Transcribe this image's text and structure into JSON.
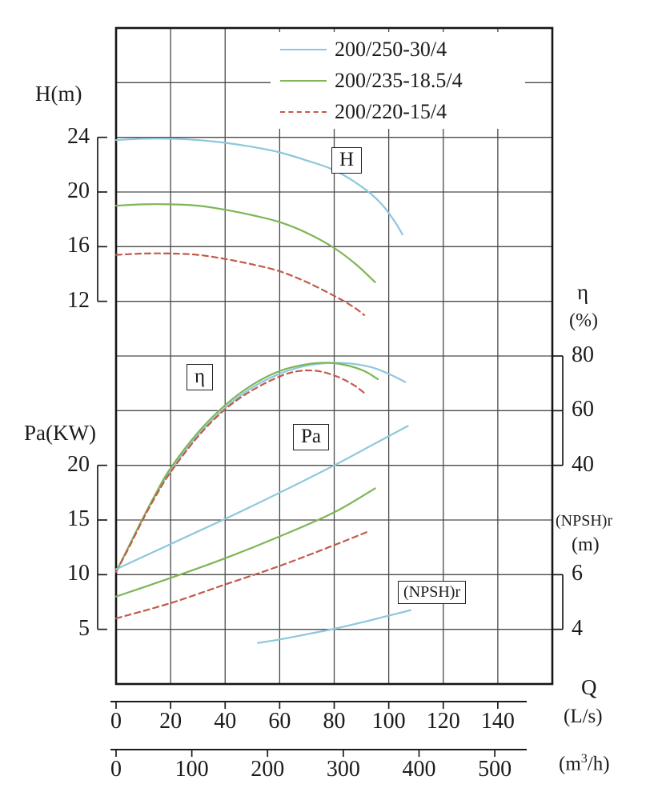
{
  "chart_data": {
    "type": "line",
    "title": "",
    "grid": true,
    "colors": {
      "grid": "#4a4a4a",
      "border": "#161616",
      "text": "#1b1b1b",
      "background": "#ffffff",
      "blue": "#8cc7dd",
      "green": "#7eb654",
      "red": "#c25a4b"
    },
    "x_axes": {
      "primary": {
        "name": "Q",
        "unit": "(L/s)",
        "min": 0,
        "max": 160,
        "ticks": [
          0,
          20,
          40,
          60,
          80,
          100,
          120,
          140
        ]
      },
      "secondary": {
        "unit_prefix": "(m",
        "unit_sup": "3",
        "unit_suffix": "/h)",
        "ticks": [
          0,
          100,
          200,
          300,
          400,
          500
        ]
      }
    },
    "y_axes": {
      "h": {
        "title": "H(m)",
        "side": "left",
        "ticks": [
          24,
          20,
          16,
          12
        ]
      },
      "pa": {
        "title": "Pa(KW)",
        "side": "left",
        "ticks": [
          20,
          15,
          10,
          5
        ]
      },
      "eta": {
        "title": "η",
        "unit": "(%)",
        "side": "right",
        "ticks": [
          80,
          60,
          40
        ]
      },
      "npshr": {
        "title": "(NPSH)r",
        "unit": "(m)",
        "side": "right",
        "ticks": [
          6,
          4
        ]
      }
    },
    "legend": [
      {
        "label": "200/250-30/4",
        "color": "#8cc7dd",
        "dash": false
      },
      {
        "label": "200/235-18.5/4",
        "color": "#7eb654",
        "dash": false
      },
      {
        "label": "200/220-15/4",
        "color": "#c25a4b",
        "dash": true
      }
    ],
    "curve_labels": {
      "h": "H",
      "eta": "η",
      "pa": "Pa",
      "npshr": "(NPSH)r"
    },
    "series": [
      {
        "id": "h-200-250-30-4",
        "group": "H",
        "model": "200/250-30/4",
        "axis": "h",
        "color": "#8cc7dd",
        "dash": false,
        "points": [
          [
            0,
            23.8
          ],
          [
            10,
            23.9
          ],
          [
            20,
            23.9
          ],
          [
            30,
            23.8
          ],
          [
            40,
            23.6
          ],
          [
            50,
            23.3
          ],
          [
            60,
            22.9
          ],
          [
            70,
            22.3
          ],
          [
            80,
            21.6
          ],
          [
            90,
            20.4
          ],
          [
            97,
            19.2
          ],
          [
            102,
            17.9
          ],
          [
            105,
            16.9
          ]
        ]
      },
      {
        "id": "h-200-235-18-5-4",
        "group": "H",
        "model": "200/235-18.5/4",
        "axis": "h",
        "color": "#7eb654",
        "dash": false,
        "points": [
          [
            0,
            19.0
          ],
          [
            10,
            19.1
          ],
          [
            20,
            19.1
          ],
          [
            30,
            19.0
          ],
          [
            40,
            18.7
          ],
          [
            50,
            18.3
          ],
          [
            60,
            17.8
          ],
          [
            70,
            17.0
          ],
          [
            80,
            15.9
          ],
          [
            88,
            14.7
          ],
          [
            95,
            13.4
          ]
        ]
      },
      {
        "id": "h-200-220-15-4",
        "group": "H",
        "model": "200/220-15/4",
        "axis": "h",
        "color": "#c25a4b",
        "dash": true,
        "points": [
          [
            0,
            15.4
          ],
          [
            10,
            15.5
          ],
          [
            20,
            15.5
          ],
          [
            30,
            15.4
          ],
          [
            40,
            15.1
          ],
          [
            50,
            14.7
          ],
          [
            60,
            14.2
          ],
          [
            70,
            13.4
          ],
          [
            80,
            12.4
          ],
          [
            87,
            11.6
          ],
          [
            91,
            11.0
          ]
        ]
      },
      {
        "id": "eta-200-250-30-4",
        "group": "eta",
        "model": "200/250-30/4",
        "axis": "eta",
        "color": "#8cc7dd",
        "dash": false,
        "points": [
          [
            0,
            1
          ],
          [
            5,
            11
          ],
          [
            10,
            21
          ],
          [
            15,
            30
          ],
          [
            20,
            38
          ],
          [
            30,
            51
          ],
          [
            40,
            61
          ],
          [
            50,
            68.5
          ],
          [
            60,
            73.5
          ],
          [
            70,
            76.5
          ],
          [
            80,
            77.5
          ],
          [
            88,
            77
          ],
          [
            95,
            75.5
          ],
          [
            101,
            73
          ],
          [
            106,
            70.5
          ]
        ]
      },
      {
        "id": "eta-200-235-18-5-4",
        "group": "eta",
        "model": "200/235-18.5/4",
        "axis": "eta",
        "color": "#7eb654",
        "dash": false,
        "points": [
          [
            0,
            1
          ],
          [
            5,
            11
          ],
          [
            10,
            21
          ],
          [
            15,
            30.5
          ],
          [
            20,
            39
          ],
          [
            30,
            52
          ],
          [
            40,
            62
          ],
          [
            50,
            69.5
          ],
          [
            60,
            74.5
          ],
          [
            70,
            77
          ],
          [
            78,
            77.5
          ],
          [
            85,
            76.5
          ],
          [
            91,
            74.5
          ],
          [
            96,
            71.5
          ]
        ]
      },
      {
        "id": "eta-200-220-15-4",
        "group": "eta",
        "model": "200/220-15/4",
        "axis": "eta",
        "color": "#c25a4b",
        "dash": true,
        "points": [
          [
            0,
            1
          ],
          [
            5,
            10.5
          ],
          [
            10,
            20.5
          ],
          [
            15,
            29.5
          ],
          [
            20,
            37.5
          ],
          [
            30,
            50.5
          ],
          [
            40,
            60.5
          ],
          [
            50,
            67.5
          ],
          [
            60,
            72.5
          ],
          [
            67,
            74.5
          ],
          [
            74,
            74.5
          ],
          [
            81,
            72.5
          ],
          [
            87,
            69.5
          ],
          [
            91,
            66.5
          ]
        ]
      },
      {
        "id": "pa-200-250-30-4",
        "group": "Pa",
        "model": "200/250-30/4",
        "axis": "pa",
        "color": "#8cc7dd",
        "dash": false,
        "points": [
          [
            0,
            10.5
          ],
          [
            20,
            12.8
          ],
          [
            40,
            15.1
          ],
          [
            60,
            17.5
          ],
          [
            80,
            20.0
          ],
          [
            95,
            22.0
          ],
          [
            107,
            23.6
          ]
        ]
      },
      {
        "id": "pa-200-235-18-5-4",
        "group": "Pa",
        "model": "200/235-18.5/4",
        "axis": "pa",
        "color": "#7eb654",
        "dash": false,
        "points": [
          [
            0,
            8.0
          ],
          [
            20,
            9.7
          ],
          [
            40,
            11.5
          ],
          [
            60,
            13.5
          ],
          [
            80,
            15.7
          ],
          [
            95,
            17.9
          ]
        ]
      },
      {
        "id": "pa-200-220-15-4",
        "group": "Pa",
        "model": "200/220-15/4",
        "axis": "pa",
        "color": "#c25a4b",
        "dash": true,
        "points": [
          [
            0,
            6.0
          ],
          [
            20,
            7.4
          ],
          [
            40,
            9.1
          ],
          [
            60,
            10.8
          ],
          [
            80,
            12.7
          ],
          [
            93,
            14.0
          ]
        ]
      },
      {
        "id": "npshr-200-250-30-4",
        "group": "NPSHr",
        "model": "200/250-30/4",
        "axis": "npshr",
        "color": "#8cc7dd",
        "dash": false,
        "points": [
          [
            52,
            3.5
          ],
          [
            60,
            3.63
          ],
          [
            70,
            3.82
          ],
          [
            80,
            4.02
          ],
          [
            90,
            4.25
          ],
          [
            100,
            4.5
          ],
          [
            108,
            4.7
          ]
        ]
      }
    ]
  }
}
